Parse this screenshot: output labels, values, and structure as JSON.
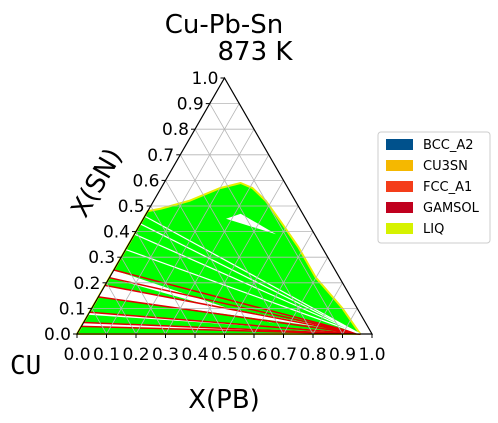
{
  "chart_data": {
    "type": "ternary",
    "title": "Cu-Pb-Sn",
    "subtitle": "873  K",
    "x_axis_label": "X(PB)",
    "y_axis_label": "X(SN)",
    "corner_label": "CU",
    "x_ticks": [
      "0.0",
      "0.1",
      "0.2",
      "0.3",
      "0.4",
      "0.5",
      "0.6",
      "0.7",
      "0.8",
      "0.9",
      "1.0"
    ],
    "y_ticks": [
      "0.0",
      "0.1",
      "0.2",
      "0.3",
      "0.4",
      "0.5",
      "0.6",
      "0.7",
      "0.8",
      "0.9",
      "1.0"
    ],
    "xlim": [
      0,
      1
    ],
    "ylim": [
      0,
      1
    ],
    "grid": true,
    "legend": {
      "placement": "right",
      "entries": [
        {
          "name": "BCC_A2",
          "color": "#00518c"
        },
        {
          "name": "CU3SN",
          "color": "#f5b800"
        },
        {
          "name": "FCC_A1",
          "color": "#f43d1a"
        },
        {
          "name": "GAMSOL",
          "color": "#c0001e"
        },
        {
          "name": "LIQ",
          "color": "#d6f200"
        }
      ]
    },
    "regions": [
      {
        "fill": "#00ff00",
        "outline": "#e8f000",
        "points": [
          [
            0.0,
            0.0
          ],
          [
            0.96,
            0.0
          ],
          [
            0.85,
            0.1
          ],
          [
            0.7,
            0.22
          ],
          [
            0.58,
            0.34
          ],
          [
            0.47,
            0.44
          ],
          [
            0.38,
            0.52
          ],
          [
            0.31,
            0.57
          ],
          [
            0.26,
            0.59
          ],
          [
            0.2,
            0.57
          ],
          [
            0.12,
            0.52
          ],
          [
            0.04,
            0.49
          ],
          [
            0.0,
            0.48
          ]
        ]
      }
    ],
    "gaps": [
      {
        "fill": "#ffffff",
        "outline": "#e00000",
        "points": [
          [
            0.0,
            0.22
          ],
          [
            0.65,
            0.04
          ],
          [
            0.0,
            0.25
          ]
        ]
      },
      {
        "fill": "#ffffff",
        "outline": "#e00000",
        "points": [
          [
            0.0,
            0.145
          ],
          [
            0.93,
            0.01
          ],
          [
            0.0,
            0.19
          ]
        ]
      },
      {
        "fill": "#ffffff",
        "outline": "#e00000",
        "points": [
          [
            0.0,
            0.085
          ],
          [
            0.96,
            0.003
          ],
          [
            0.0,
            0.075
          ]
        ]
      },
      {
        "fill": "#ffffff",
        "outline": "#e00000",
        "points": [
          [
            0.0,
            0.03
          ],
          [
            0.93,
            0.005
          ],
          [
            0.0,
            0.045
          ]
        ]
      },
      {
        "fill": "#ffffff",
        "outline": "#ffffff",
        "points": [
          [
            0.28,
            0.45
          ],
          [
            0.48,
            0.39
          ],
          [
            0.32,
            0.47
          ]
        ]
      }
    ],
    "tie_lines": [
      {
        "color": "#e00000",
        "from": [
          0.0,
          0.25
        ],
        "to": [
          0.96,
          0.0
        ]
      },
      {
        "color": "#e00000",
        "from": [
          0.0,
          0.22
        ],
        "to": [
          0.96,
          0.0
        ]
      },
      {
        "color": "#e00000",
        "from": [
          0.0,
          0.19
        ],
        "to": [
          0.96,
          0.0
        ]
      },
      {
        "color": "#e00000",
        "from": [
          0.0,
          0.145
        ],
        "to": [
          0.96,
          0.0
        ]
      },
      {
        "color": "#e00000",
        "from": [
          0.0,
          0.085
        ],
        "to": [
          0.96,
          0.0
        ]
      },
      {
        "color": "#e00000",
        "from": [
          0.0,
          0.045
        ],
        "to": [
          0.96,
          0.0
        ]
      },
      {
        "color": "#e00000",
        "from": [
          0.0,
          0.03
        ],
        "to": [
          0.96,
          0.0
        ]
      },
      {
        "color": "#ffffff",
        "from": [
          0.0,
          0.33
        ],
        "to": [
          0.96,
          0.0
        ]
      },
      {
        "color": "#ffffff",
        "from": [
          0.0,
          0.39
        ],
        "to": [
          0.96,
          0.0
        ]
      },
      {
        "color": "#ffffff",
        "from": [
          0.0,
          0.43
        ],
        "to": [
          0.96,
          0.0
        ]
      },
      {
        "color": "#ffffff",
        "from": [
          0.0,
          0.46
        ],
        "to": [
          0.96,
          0.0
        ]
      }
    ]
  }
}
